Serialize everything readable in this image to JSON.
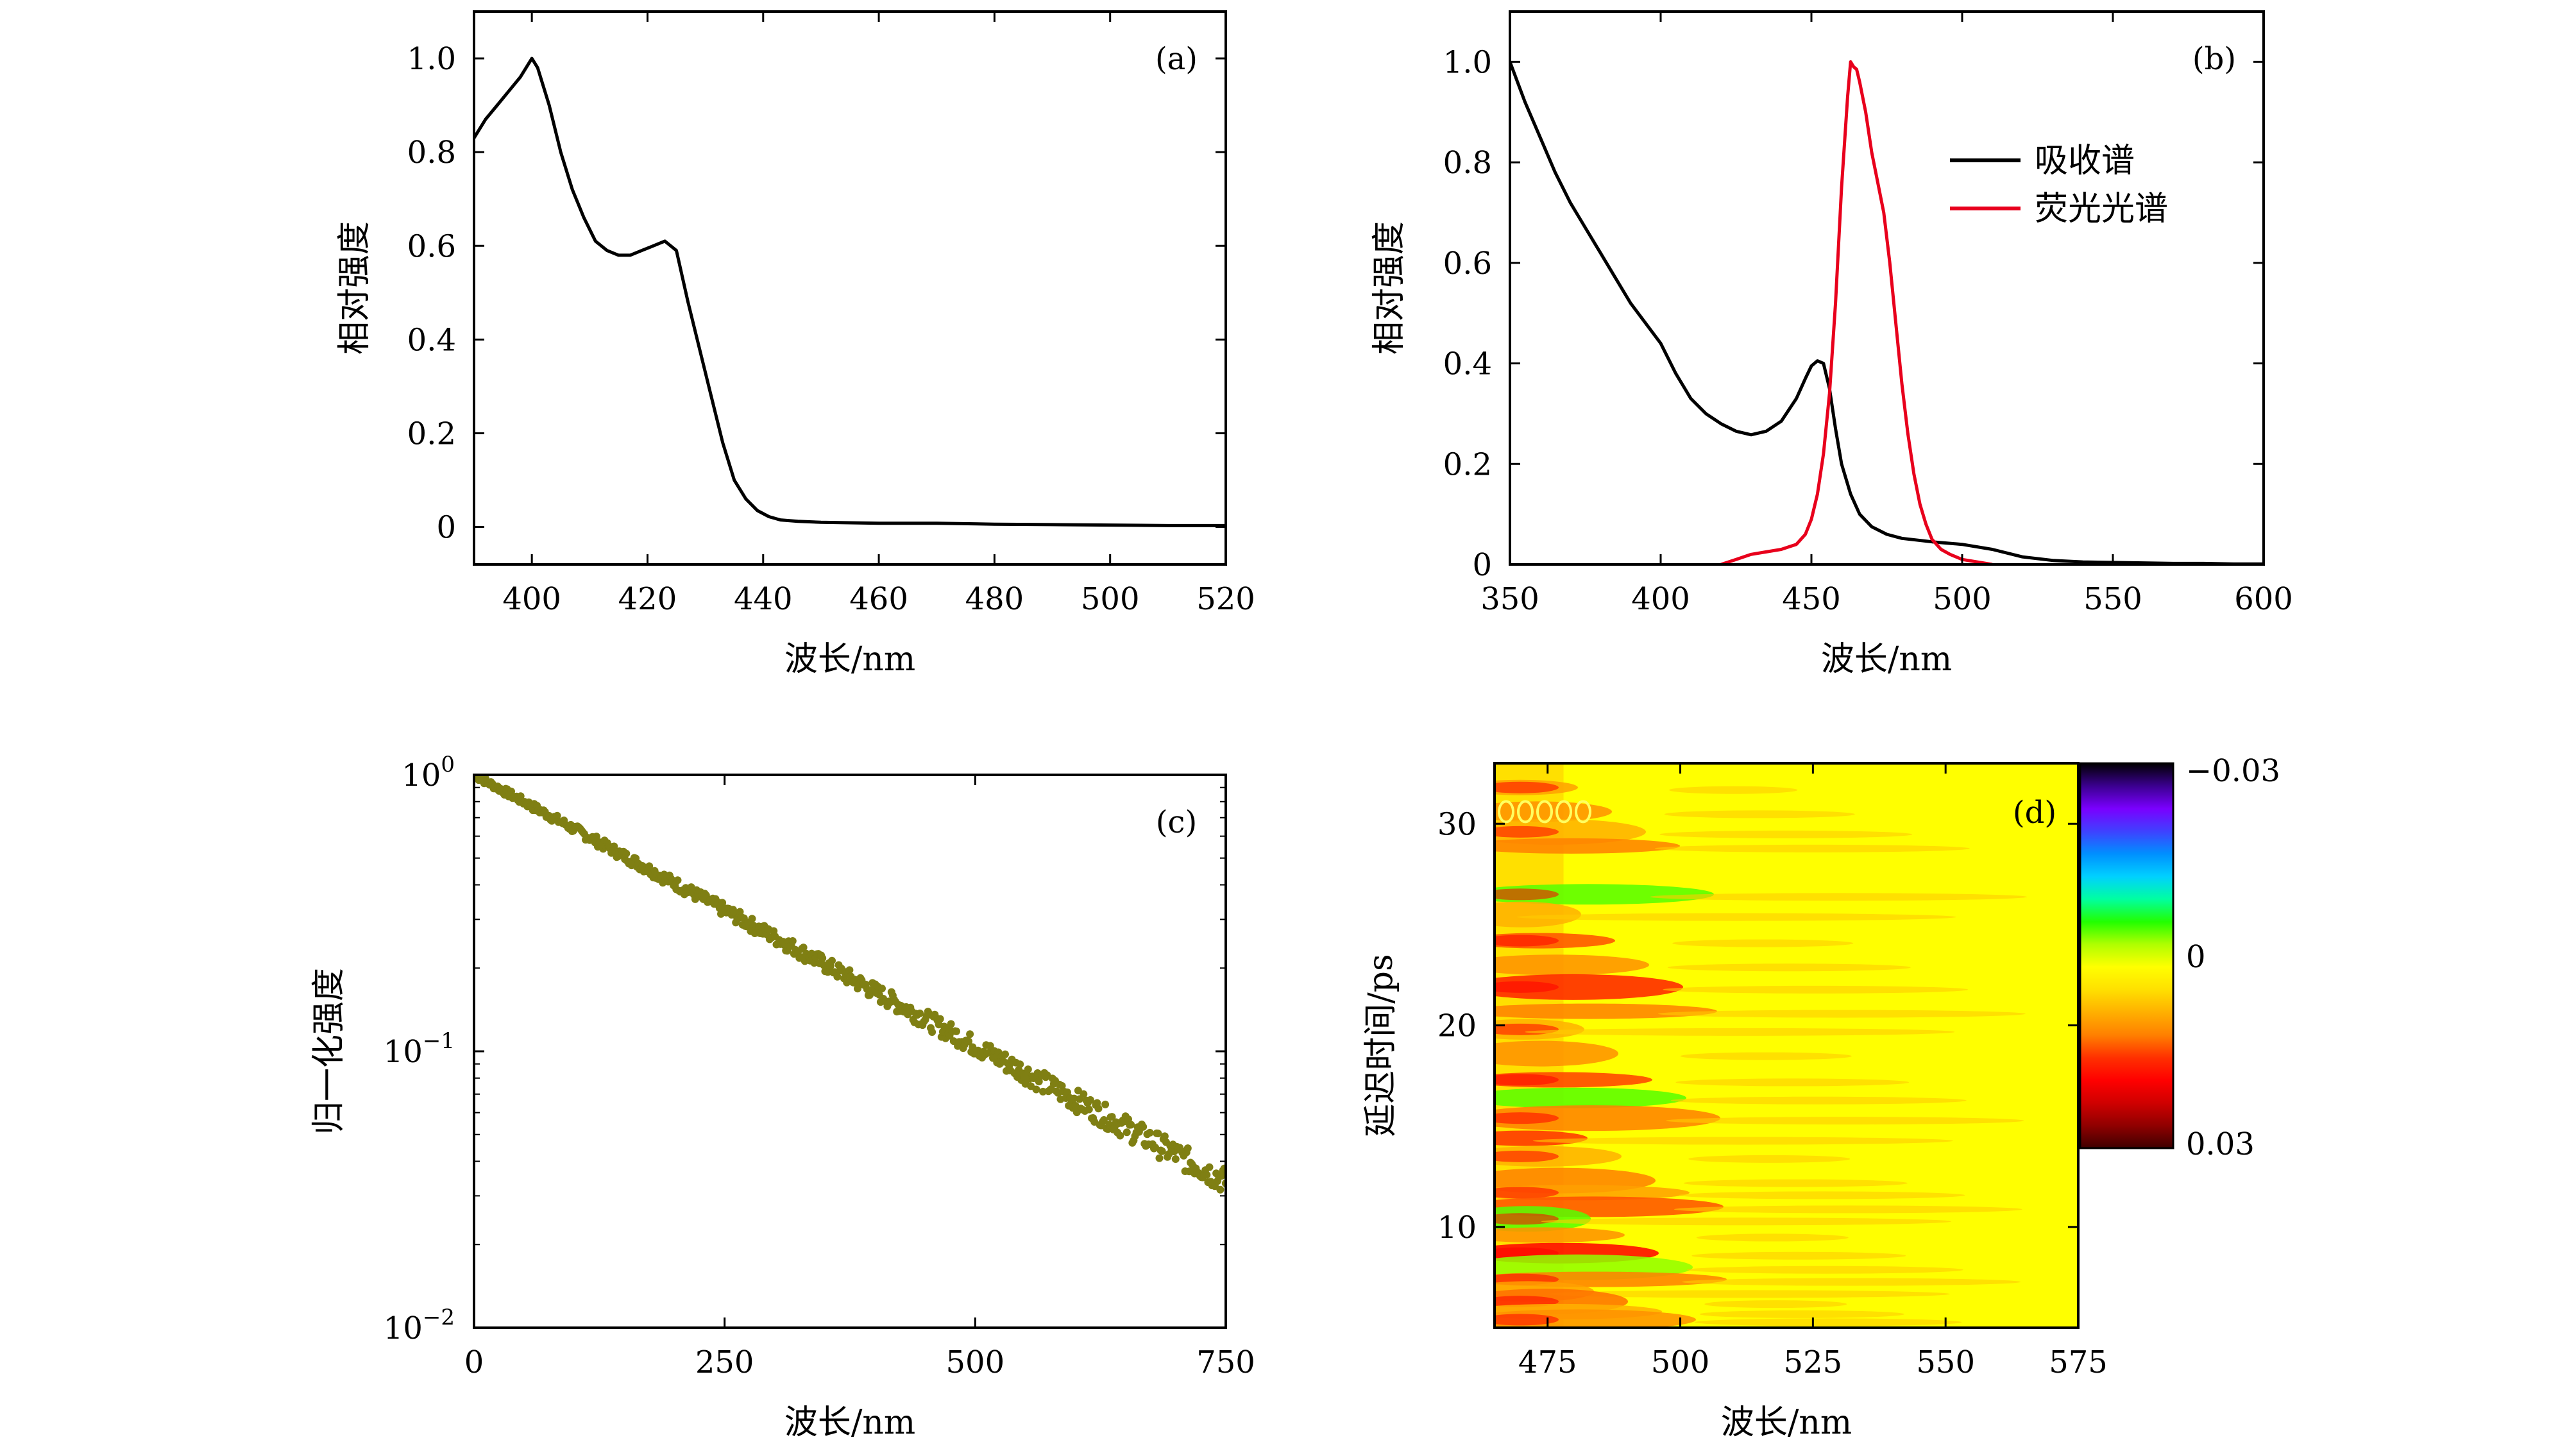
{
  "chart_data": [
    {
      "type": "line",
      "panel_label": "(a)",
      "xlabel": "波长/nm",
      "ylabel": "相对强度",
      "xlim": [
        390,
        520
      ],
      "ylim": [
        -0.08,
        1.1
      ],
      "xticks": [
        400,
        420,
        440,
        460,
        480,
        500,
        520
      ],
      "yticks": [
        0,
        0.2,
        0.4,
        0.6,
        0.8,
        1.0
      ],
      "ytick_labels": [
        "0",
        "0.2",
        "0.4",
        "0.6",
        "0.8",
        "1.0"
      ],
      "series": [
        {
          "color": "#000000",
          "x": [
            390,
            392,
            394,
            396,
            398,
            400,
            401,
            403,
            405,
            407,
            409,
            411,
            413,
            415,
            417,
            419,
            421,
            423,
            425,
            427,
            429,
            431,
            433,
            435,
            437,
            439,
            441,
            443,
            446,
            450,
            460,
            470,
            480,
            490,
            500,
            510,
            520
          ],
          "y": [
            0.83,
            0.87,
            0.9,
            0.93,
            0.96,
            1.0,
            0.98,
            0.9,
            0.8,
            0.72,
            0.66,
            0.61,
            0.59,
            0.58,
            0.58,
            0.59,
            0.6,
            0.61,
            0.59,
            0.48,
            0.38,
            0.28,
            0.18,
            0.1,
            0.06,
            0.035,
            0.022,
            0.015,
            0.012,
            0.01,
            0.008,
            0.008,
            0.006,
            0.005,
            0.004,
            0.003,
            0.003
          ]
        }
      ]
    },
    {
      "type": "line",
      "panel_label": "(b)",
      "xlabel": "波长/nm",
      "ylabel": "相对强度",
      "xlim": [
        350,
        600
      ],
      "ylim": [
        0,
        1.1
      ],
      "xticks": [
        350,
        400,
        450,
        500,
        550,
        600
      ],
      "yticks": [
        0,
        0.2,
        0.4,
        0.6,
        0.8,
        1.0
      ],
      "ytick_labels": [
        "0",
        "0.2",
        "0.4",
        "0.6",
        "0.8",
        "1.0"
      ],
      "legend": {
        "position": "top-right"
      },
      "series": [
        {
          "name": "吸收谱",
          "color": "#000000",
          "x": [
            350,
            355,
            360,
            365,
            370,
            375,
            380,
            385,
            390,
            395,
            400,
            405,
            410,
            415,
            420,
            425,
            430,
            435,
            440,
            445,
            448,
            450,
            452,
            454,
            456,
            458,
            460,
            463,
            466,
            470,
            475,
            480,
            490,
            500,
            510,
            520,
            530,
            540,
            550,
            560,
            570,
            580,
            590,
            600
          ],
          "y": [
            1.0,
            0.92,
            0.85,
            0.78,
            0.72,
            0.67,
            0.62,
            0.57,
            0.52,
            0.48,
            0.44,
            0.38,
            0.33,
            0.3,
            0.28,
            0.265,
            0.258,
            0.265,
            0.285,
            0.33,
            0.37,
            0.395,
            0.405,
            0.4,
            0.35,
            0.27,
            0.2,
            0.14,
            0.1,
            0.075,
            0.06,
            0.052,
            0.045,
            0.04,
            0.03,
            0.015,
            0.008,
            0.005,
            0.004,
            0.003,
            0.002,
            0.002,
            0.001,
            0.001
          ],
          "legend_label": "吸收谱"
        },
        {
          "name": "荧光光谱",
          "color": "#e8001c",
          "x": [
            420,
            425,
            430,
            435,
            440,
            445,
            448,
            450,
            452,
            454,
            456,
            458,
            460,
            462,
            463,
            464,
            465,
            466,
            468,
            470,
            472,
            474,
            476,
            478,
            480,
            482,
            484,
            486,
            488,
            490,
            493,
            496,
            500,
            505,
            510
          ],
          "y": [
            0.0,
            0.01,
            0.02,
            0.025,
            0.03,
            0.04,
            0.06,
            0.09,
            0.14,
            0.22,
            0.34,
            0.52,
            0.75,
            0.93,
            1.0,
            0.99,
            0.985,
            0.96,
            0.9,
            0.82,
            0.76,
            0.7,
            0.6,
            0.48,
            0.36,
            0.26,
            0.18,
            0.12,
            0.08,
            0.05,
            0.03,
            0.02,
            0.01,
            0.005,
            0.0
          ],
          "legend_label": "荧光光谱"
        }
      ]
    },
    {
      "type": "scatter",
      "panel_label": "(c)",
      "xlabel": "波长/nm",
      "ylabel": "归一化强度",
      "xlim": [
        0,
        750
      ],
      "ylim_log10": [
        -2,
        0
      ],
      "yscale": "log",
      "xticks": [
        0,
        250,
        500,
        750
      ],
      "yticks": [
        0.01,
        0.1,
        1
      ],
      "ytick_labels": [
        {
          "base": "10",
          "exp": "−2"
        },
        {
          "base": "10",
          "exp": "−1"
        },
        {
          "base": "10",
          "exp": "0"
        }
      ],
      "series": [
        {
          "color": "#7f7f13",
          "fit": {
            "x_start": 0,
            "x_end": 750,
            "y_at_x0": 1.0,
            "y_at_x_end": 0.034,
            "scatter_ratio": 0.07
          }
        }
      ]
    },
    {
      "type": "heatmap",
      "panel_label": "(d)",
      "xlabel": "波长/nm",
      "ylabel": "延迟时间/ps",
      "xlim": [
        465,
        575
      ],
      "ylim": [
        5,
        33
      ],
      "xticks": [
        475,
        500,
        525,
        550,
        575
      ],
      "yticks": [
        10,
        20,
        30
      ],
      "colorbar": {
        "ticks": [
          "−0.03",
          "0",
          "0.03"
        ],
        "stops_top_to_bottom": [
          "#000000",
          "#3b0090",
          "#7a00ff",
          "#4040ff",
          "#008fff",
          "#00d0ff",
          "#00ffa0",
          "#22ff00",
          "#b0ff00",
          "#ffff00",
          "#ffe000",
          "#ffb000",
          "#ff8000",
          "#ff3000",
          "#ff0000",
          "#d00000",
          "#900000",
          "#400000"
        ]
      },
      "background": "#ffff00",
      "streak_ys": [
        31.8,
        30.6,
        29.6,
        28.9,
        26.5,
        25.5,
        24.2,
        23.0,
        21.9,
        20.7,
        19.8,
        18.6,
        17.3,
        16.4,
        15.4,
        14.4,
        13.5,
        12.3,
        11.7,
        11.0,
        10.4,
        9.6,
        8.7,
        8.0,
        7.4,
        6.8,
        6.3,
        5.8,
        5.4
      ],
      "streak_colors": [
        "#ffa000",
        "#ff9000",
        "#ffb000",
        "#ff8000",
        "#55ff00",
        "#ffb000",
        "#ff5000",
        "#ff9000",
        "#ff2000",
        "#ff8000",
        "#ffb000",
        "#ff9000",
        "#ff4000",
        "#55ff00",
        "#ff8000",
        "#ff3000",
        "#ffb000",
        "#ff8000",
        "#ffa000",
        "#ff5000",
        "#55ff00",
        "#ff9000",
        "#ff0000",
        "#90ff00",
        "#ff8000",
        "#ffa000",
        "#ff7000",
        "#ffb000",
        "#ff9000"
      ]
    }
  ]
}
